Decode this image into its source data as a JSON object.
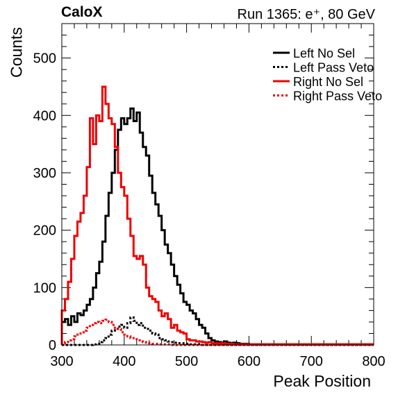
{
  "header": {
    "left_title": "CaloX",
    "right_title": "Run 1365: e⁺, 80 GeV"
  },
  "chart_data": {
    "type": "line",
    "style": "step histogram",
    "xlabel": "Peak Position",
    "ylabel": "Counts",
    "xlim": [
      300,
      800
    ],
    "ylim": [
      0,
      560
    ],
    "x_ticks": [
      300,
      400,
      500,
      600,
      700,
      800
    ],
    "y_ticks": [
      0,
      100,
      200,
      300,
      400,
      500
    ],
    "bin_width": 5,
    "legend_position": "top-right",
    "colors": {
      "black": "#000000",
      "red": "#ee0000"
    },
    "series": [
      {
        "name": "Left No Sel",
        "color": "#000000",
        "dashed": false,
        "x": [
          300,
          305,
          310,
          315,
          320,
          325,
          330,
          335,
          340,
          345,
          350,
          355,
          360,
          365,
          370,
          375,
          380,
          385,
          390,
          395,
          400,
          405,
          410,
          415,
          420,
          425,
          430,
          435,
          440,
          445,
          450,
          455,
          460,
          465,
          470,
          475,
          480,
          485,
          490,
          495,
          500,
          505,
          510,
          515,
          520,
          525,
          530,
          535,
          540,
          545,
          550,
          555,
          560,
          565,
          570,
          575,
          580,
          585,
          590,
          595,
          600,
          605,
          610,
          615,
          620,
          625,
          630,
          635,
          640,
          645,
          650,
          655,
          660,
          665,
          670,
          675,
          680,
          685,
          690,
          695,
          700,
          705,
          710,
          715,
          720,
          725,
          730,
          735,
          740,
          745,
          750,
          755,
          760,
          765,
          770,
          775,
          780,
          785,
          790,
          795
        ],
        "y": [
          40,
          45,
          35,
          50,
          40,
          55,
          52,
          60,
          70,
          80,
          100,
          125,
          145,
          180,
          225,
          265,
          300,
          340,
          375,
          395,
          385,
          395,
          412,
          390,
          405,
          370,
          345,
          330,
          295,
          265,
          245,
          225,
          200,
          175,
          160,
          140,
          120,
          105,
          90,
          75,
          70,
          60,
          55,
          45,
          35,
          30,
          20,
          12,
          8,
          6,
          5,
          4,
          6,
          4,
          3,
          4,
          3,
          2,
          2,
          2,
          1,
          1,
          1,
          1,
          1,
          1,
          1,
          1,
          1,
          1,
          1,
          1,
          1,
          1,
          1,
          1,
          1,
          1,
          1,
          1,
          1,
          1,
          1,
          1,
          1,
          1,
          1,
          1,
          1,
          1,
          1,
          1,
          1,
          1,
          1,
          1,
          1,
          1,
          1,
          1
        ]
      },
      {
        "name": "Left Pass Veto",
        "color": "#000000",
        "dashed": true,
        "x": [
          300,
          305,
          310,
          315,
          320,
          325,
          330,
          335,
          340,
          345,
          350,
          355,
          360,
          365,
          370,
          375,
          380,
          385,
          390,
          395,
          400,
          405,
          410,
          415,
          420,
          425,
          430,
          435,
          440,
          445,
          450,
          455,
          460,
          465,
          470,
          475,
          480,
          485,
          490,
          495,
          500,
          505,
          510,
          515,
          520,
          525,
          530,
          535,
          540,
          545,
          550,
          555,
          560,
          565,
          570,
          575,
          580,
          585,
          590,
          595,
          600,
          605,
          610,
          615,
          620,
          625,
          630,
          635,
          640,
          645,
          650,
          655,
          660,
          665,
          670,
          675,
          680,
          685,
          690,
          695,
          700,
          705,
          710,
          715,
          720,
          725,
          730,
          735,
          740,
          745,
          750,
          755,
          760,
          765,
          770,
          775,
          780,
          785,
          790,
          795
        ],
        "y": [
          0,
          0,
          0,
          0,
          0,
          0,
          0,
          0,
          0,
          0,
          1,
          2,
          5,
          8,
          12,
          18,
          25,
          28,
          32,
          35,
          30,
          38,
          48,
          42,
          35,
          38,
          30,
          28,
          25,
          20,
          18,
          12,
          10,
          8,
          6,
          5,
          4,
          3,
          3,
          2,
          2,
          1,
          1,
          1,
          1,
          0,
          0,
          0,
          0,
          0,
          0,
          0,
          0,
          0,
          0,
          0,
          0,
          0,
          0,
          0,
          0,
          0,
          0,
          0,
          0,
          0,
          0,
          0,
          0,
          0,
          0,
          0,
          0,
          0,
          0,
          0,
          0,
          0,
          0,
          0,
          0,
          0,
          0,
          0,
          0,
          0,
          0,
          0,
          0,
          0,
          0,
          0,
          0,
          0,
          0,
          0,
          0,
          0,
          0,
          0
        ]
      },
      {
        "name": "Right No Sel",
        "color": "#ee0000",
        "dashed": false,
        "x": [
          300,
          305,
          310,
          315,
          320,
          325,
          330,
          335,
          340,
          345,
          350,
          355,
          360,
          365,
          370,
          375,
          380,
          385,
          390,
          395,
          400,
          405,
          410,
          415,
          420,
          425,
          430,
          435,
          440,
          445,
          450,
          455,
          460,
          465,
          470,
          475,
          480,
          485,
          490,
          495,
          500,
          505,
          510,
          515,
          520,
          525,
          530,
          535,
          540,
          545,
          550,
          555,
          560,
          565,
          570,
          575,
          580,
          585,
          590,
          595,
          600,
          605,
          610,
          615,
          620,
          625,
          630,
          635,
          640,
          645,
          650,
          655,
          660,
          665,
          670,
          675,
          680,
          685,
          690,
          695,
          700,
          705,
          710,
          715,
          720,
          725,
          730,
          735,
          740,
          745,
          750,
          755,
          760,
          765,
          770,
          775,
          780,
          785,
          790,
          795
        ],
        "y": [
          60,
          80,
          110,
          150,
          190,
          215,
          230,
          260,
          310,
          395,
          350,
          400,
          390,
          450,
          420,
          395,
          385,
          345,
          300,
          275,
          260,
          220,
          190,
          155,
          150,
          155,
          140,
          100,
          85,
          80,
          75,
          60,
          50,
          55,
          45,
          30,
          35,
          25,
          22,
          20,
          10,
          8,
          8,
          6,
          6,
          5,
          4,
          5,
          3,
          3,
          2,
          3,
          2,
          2,
          2,
          1,
          1,
          1,
          1,
          1,
          1,
          1,
          1,
          1,
          1,
          1,
          1,
          1,
          1,
          1,
          1,
          1,
          1,
          1,
          1,
          1,
          1,
          1,
          1,
          1,
          1,
          1,
          1,
          1,
          1,
          1,
          1,
          1,
          1,
          1,
          1,
          1,
          1,
          1,
          1,
          1,
          1,
          1,
          1,
          1
        ]
      },
      {
        "name": "Right Pass Veto",
        "color": "#ee0000",
        "dashed": true,
        "x": [
          300,
          305,
          310,
          315,
          320,
          325,
          330,
          335,
          340,
          345,
          350,
          355,
          360,
          365,
          370,
          375,
          380,
          385,
          390,
          395,
          400,
          405,
          410,
          415,
          420,
          425,
          430,
          435,
          440,
          445,
          450,
          455,
          460,
          465,
          470,
          475,
          480,
          485,
          490,
          495,
          500,
          505,
          510,
          515,
          520,
          525,
          530,
          535,
          540,
          545,
          550,
          555,
          560,
          565,
          570,
          575,
          580,
          585,
          590,
          595,
          600,
          605,
          610,
          615,
          620,
          625,
          630,
          635,
          640,
          645,
          650,
          655,
          660,
          665,
          670,
          675,
          680,
          685,
          690,
          695,
          700,
          705,
          710,
          715,
          720,
          725,
          730,
          735,
          740,
          745,
          750,
          755,
          760,
          765,
          770,
          775,
          780,
          785,
          790,
          795
        ],
        "y": [
          3,
          5,
          8,
          10,
          15,
          18,
          22,
          25,
          30,
          35,
          38,
          40,
          38,
          42,
          44,
          40,
          35,
          30,
          28,
          22,
          18,
          15,
          12,
          10,
          8,
          6,
          5,
          4,
          3,
          2,
          2,
          1,
          1,
          1,
          1,
          0,
          0,
          0,
          0,
          0,
          0,
          0,
          0,
          0,
          0,
          0,
          0,
          0,
          0,
          0,
          0,
          0,
          0,
          0,
          0,
          0,
          0,
          0,
          0,
          0,
          0,
          0,
          0,
          0,
          0,
          0,
          0,
          0,
          0,
          0,
          0,
          0,
          0,
          0,
          0,
          0,
          0,
          0,
          0,
          0,
          0,
          0,
          0,
          0,
          0,
          0,
          0,
          0,
          0,
          0,
          0,
          0,
          0,
          0,
          0,
          0,
          0,
          0,
          0,
          0
        ]
      }
    ]
  }
}
